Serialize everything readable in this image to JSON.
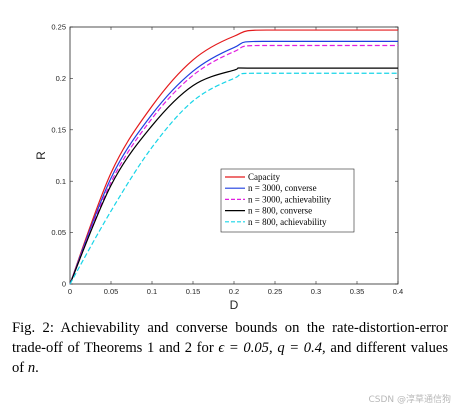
{
  "chart_data": {
    "type": "line",
    "xlabel": "D",
    "ylabel": "R",
    "xlim": [
      0,
      0.4
    ],
    "ylim": [
      0,
      0.25
    ],
    "xticks": [
      "0",
      "0.05",
      "0.1",
      "0.15",
      "0.2",
      "0.25",
      "0.3",
      "0.35",
      "0.4"
    ],
    "yticks": [
      "0",
      "0.05",
      "0.1",
      "0.15",
      "0.2",
      "0.25"
    ],
    "grid": false,
    "legend_position": "center-right",
    "series": [
      {
        "name": "Capacity",
        "color": "#e41a1c",
        "dash": "solid",
        "x": [
          0,
          0.05,
          0.1,
          0.15,
          0.2,
          0.24,
          0.4
        ],
        "y": [
          0,
          0.108,
          0.173,
          0.218,
          0.241,
          0.247,
          0.247
        ]
      },
      {
        "name": "n = 3000, converse",
        "color": "#1f3fe0",
        "dash": "solid",
        "x": [
          0,
          0.05,
          0.1,
          0.15,
          0.2,
          0.235,
          0.4
        ],
        "y": [
          0,
          0.103,
          0.165,
          0.207,
          0.23,
          0.236,
          0.236
        ]
      },
      {
        "name": "n = 3000, achievability",
        "color": "#e01fe0",
        "dash": "dashed",
        "x": [
          0,
          0.05,
          0.1,
          0.15,
          0.2,
          0.235,
          0.4
        ],
        "y": [
          0,
          0.099,
          0.161,
          0.203,
          0.226,
          0.232,
          0.232
        ]
      },
      {
        "name": "n = 800, converse",
        "color": "#000000",
        "dash": "solid",
        "x": [
          0,
          0.05,
          0.1,
          0.15,
          0.2,
          0.225,
          0.4
        ],
        "y": [
          0,
          0.096,
          0.154,
          0.193,
          0.208,
          0.21,
          0.21
        ]
      },
      {
        "name": "n = 800, achievability",
        "color": "#19d5e8",
        "dash": "dashed",
        "x": [
          0,
          0.05,
          0.1,
          0.15,
          0.2,
          0.23,
          0.4
        ],
        "y": [
          0,
          0.071,
          0.133,
          0.178,
          0.2,
          0.205,
          0.205
        ]
      }
    ]
  },
  "caption": {
    "label": "Fig. 2:",
    "text_a": " Achievability and converse bounds on the rate-distortion-error trade-off of Theorems 1 and 2 for ",
    "eps": "ϵ = 0.05",
    "sep1": ", ",
    "q": "q = 0.4",
    "text_b": ", and different values of ",
    "n": "n",
    "end": "."
  },
  "watermark": "CSDN @淳草通信狗"
}
